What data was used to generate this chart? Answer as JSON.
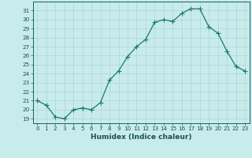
{
  "x": [
    0,
    1,
    2,
    3,
    4,
    5,
    6,
    7,
    8,
    9,
    10,
    11,
    12,
    13,
    14,
    15,
    16,
    17,
    18,
    19,
    20,
    21,
    22,
    23
  ],
  "y": [
    21.0,
    20.5,
    19.2,
    19.0,
    20.0,
    20.2,
    20.0,
    20.8,
    23.3,
    24.3,
    25.9,
    27.0,
    27.8,
    29.7,
    30.0,
    29.8,
    30.7,
    31.2,
    31.2,
    29.2,
    28.5,
    26.5,
    24.8,
    24.3
  ],
  "line_color": "#1a7a6e",
  "marker": "+",
  "marker_size": 4,
  "bg_color": "#c8ecec",
  "grid_color": "#b0d4d4",
  "xlabel": "Humidex (Indice chaleur)",
  "ylabel": "",
  "title": "",
  "ylim": [
    18.5,
    32.0
  ],
  "xlim": [
    -0.5,
    23.5
  ],
  "yticks": [
    19,
    20,
    21,
    22,
    23,
    24,
    25,
    26,
    27,
    28,
    29,
    30,
    31
  ],
  "xticks": [
    0,
    1,
    2,
    3,
    4,
    5,
    6,
    7,
    8,
    9,
    10,
    11,
    12,
    13,
    14,
    15,
    16,
    17,
    18,
    19,
    20,
    21,
    22,
    23
  ],
  "tick_color": "#1a6060",
  "tick_fontsize": 5.2,
  "xlabel_fontsize": 6.5,
  "label_color": "#1a5050",
  "spine_color": "#1a6060",
  "linewidth": 0.9
}
